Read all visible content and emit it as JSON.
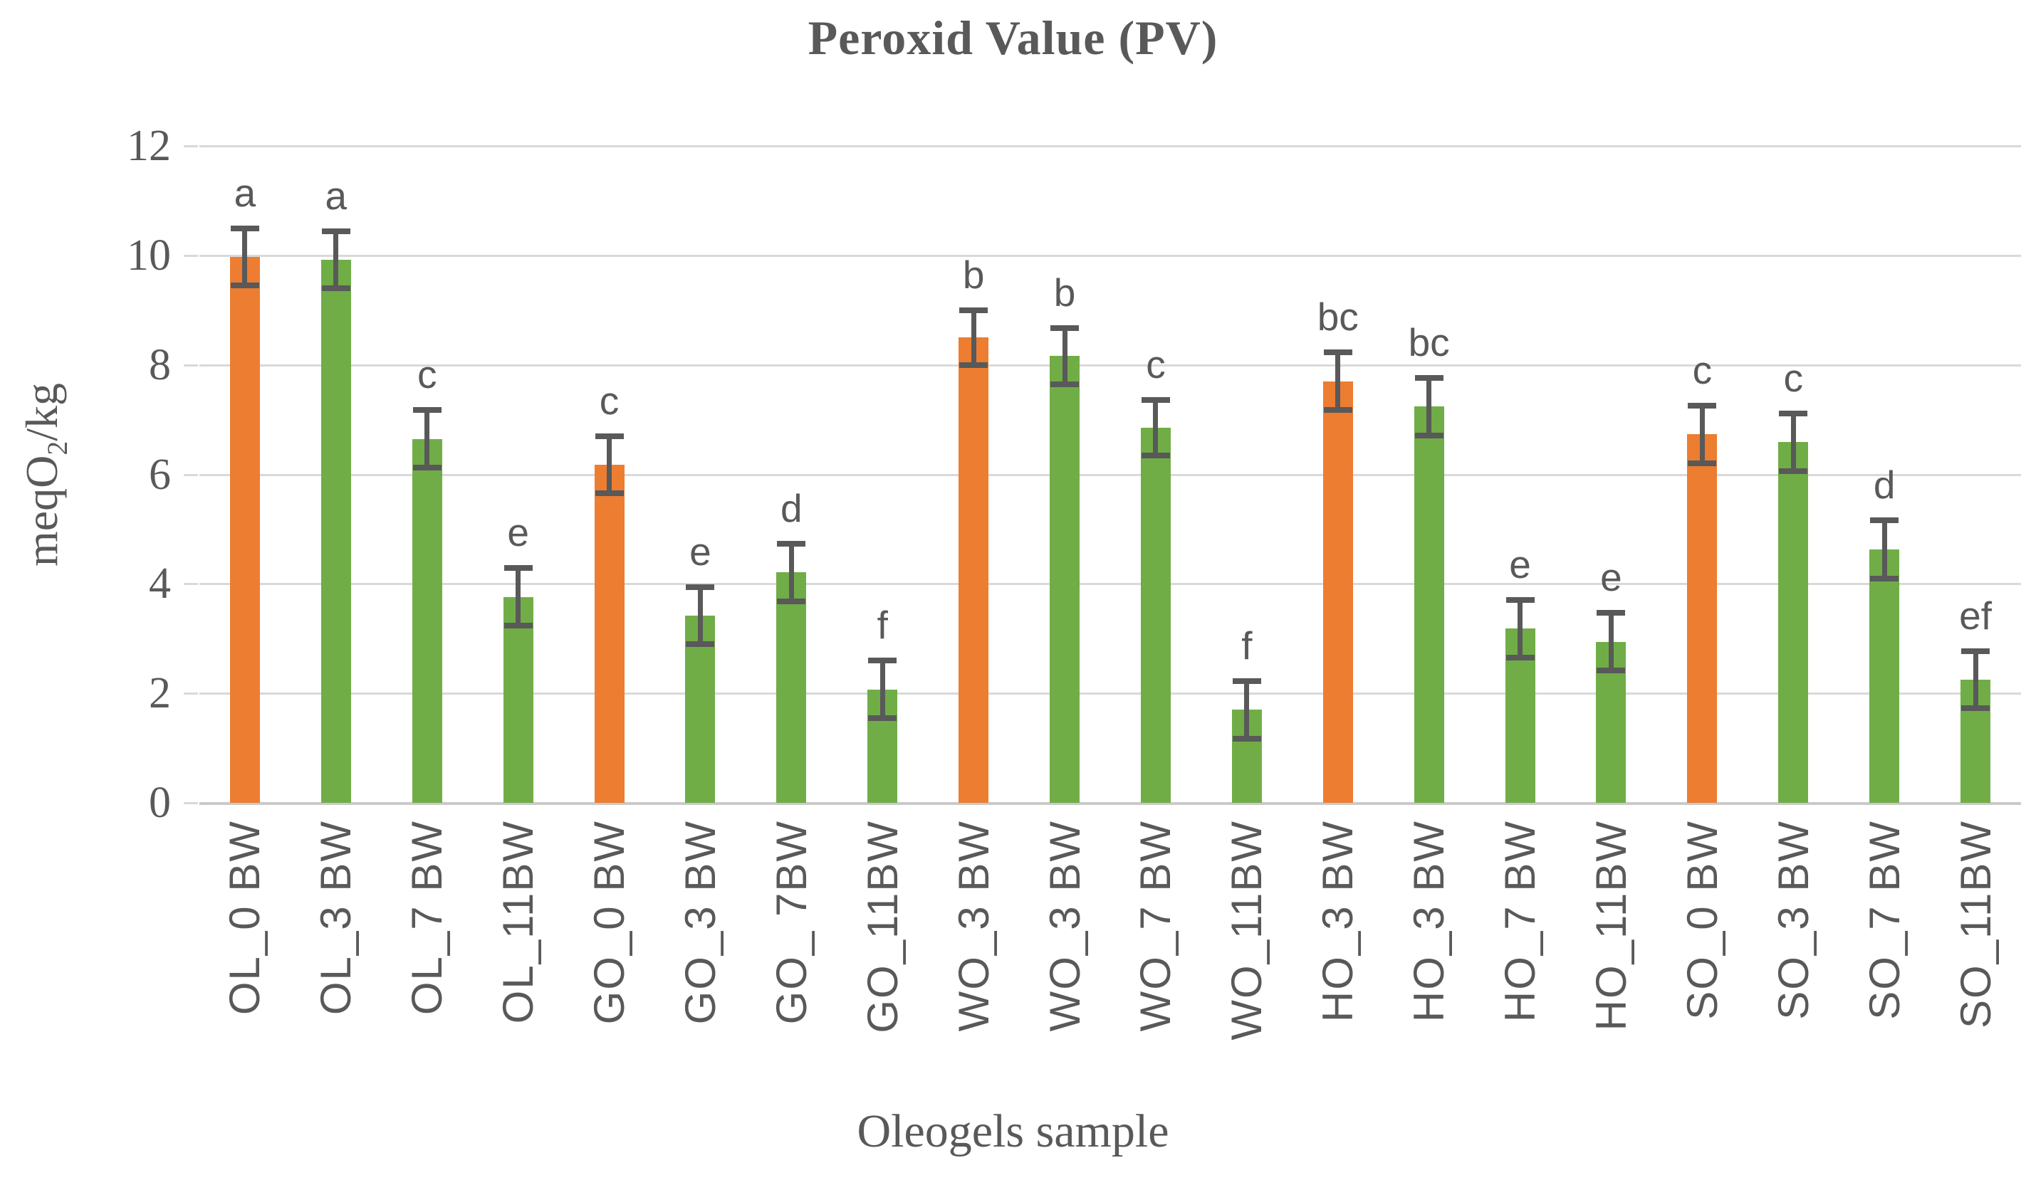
{
  "chart_data": {
    "type": "bar",
    "title": "Peroxid Value (PV)",
    "xlabel": "Oleogels sample",
    "ylabel": "meqO2/kg",
    "ylabel_parts": {
      "base": "meqO",
      "sub": "2",
      "rest": "/kg"
    },
    "ylim": [
      0,
      12
    ],
    "yticks": [
      0,
      2,
      4,
      6,
      8,
      10,
      12
    ],
    "grid": true,
    "legend": "none",
    "categories": [
      "OL_0 BW",
      "OL_3 BW",
      "OL_7 BW",
      "OL_11BW",
      "GO_0 BW",
      "GO_3 BW",
      "GO_ 7BW",
      "GO_11BW",
      "WO_3 BW",
      "WO_3 BW",
      "WO_7 BW",
      "WO_11BW",
      "HO_3 BW",
      "HO_3 BW",
      "HO_7 BW",
      "HO_11BW",
      "SO_0 BW",
      "SO_3 BW",
      "SO_7 BW",
      "SO_11BW"
    ],
    "values": [
      9.97,
      9.92,
      6.65,
      3.76,
      6.18,
      3.42,
      4.21,
      2.07,
      8.5,
      8.16,
      6.85,
      1.7,
      7.7,
      7.24,
      3.18,
      2.94,
      6.73,
      6.59,
      4.63,
      2.25
    ],
    "errors": [
      0.57,
      0.57,
      0.58,
      0.58,
      0.57,
      0.57,
      0.58,
      0.58,
      0.55,
      0.57,
      0.56,
      0.58,
      0.58,
      0.58,
      0.58,
      0.58,
      0.58,
      0.58,
      0.58,
      0.57
    ],
    "sig_letters": [
      "a",
      "a",
      "c",
      "e",
      "c",
      "e",
      "d",
      "f",
      "b",
      "b",
      "c",
      "f",
      "bc",
      "bc",
      "e",
      "e",
      "c",
      "c",
      "d",
      "ef"
    ],
    "bar_colors": [
      "#ED7D31",
      "#70AD47",
      "#70AD47",
      "#70AD47",
      "#ED7D31",
      "#70AD47",
      "#70AD47",
      "#70AD47",
      "#ED7D31",
      "#70AD47",
      "#70AD47",
      "#70AD47",
      "#ED7D31",
      "#70AD47",
      "#70AD47",
      "#70AD47",
      "#ED7D31",
      "#70AD47",
      "#70AD47",
      "#70AD47"
    ],
    "colors": {
      "orange": "#ED7D31",
      "green": "#70AD47",
      "text": "#595959",
      "gridline": "#D9D9D9",
      "error_bar": "#595959"
    }
  }
}
